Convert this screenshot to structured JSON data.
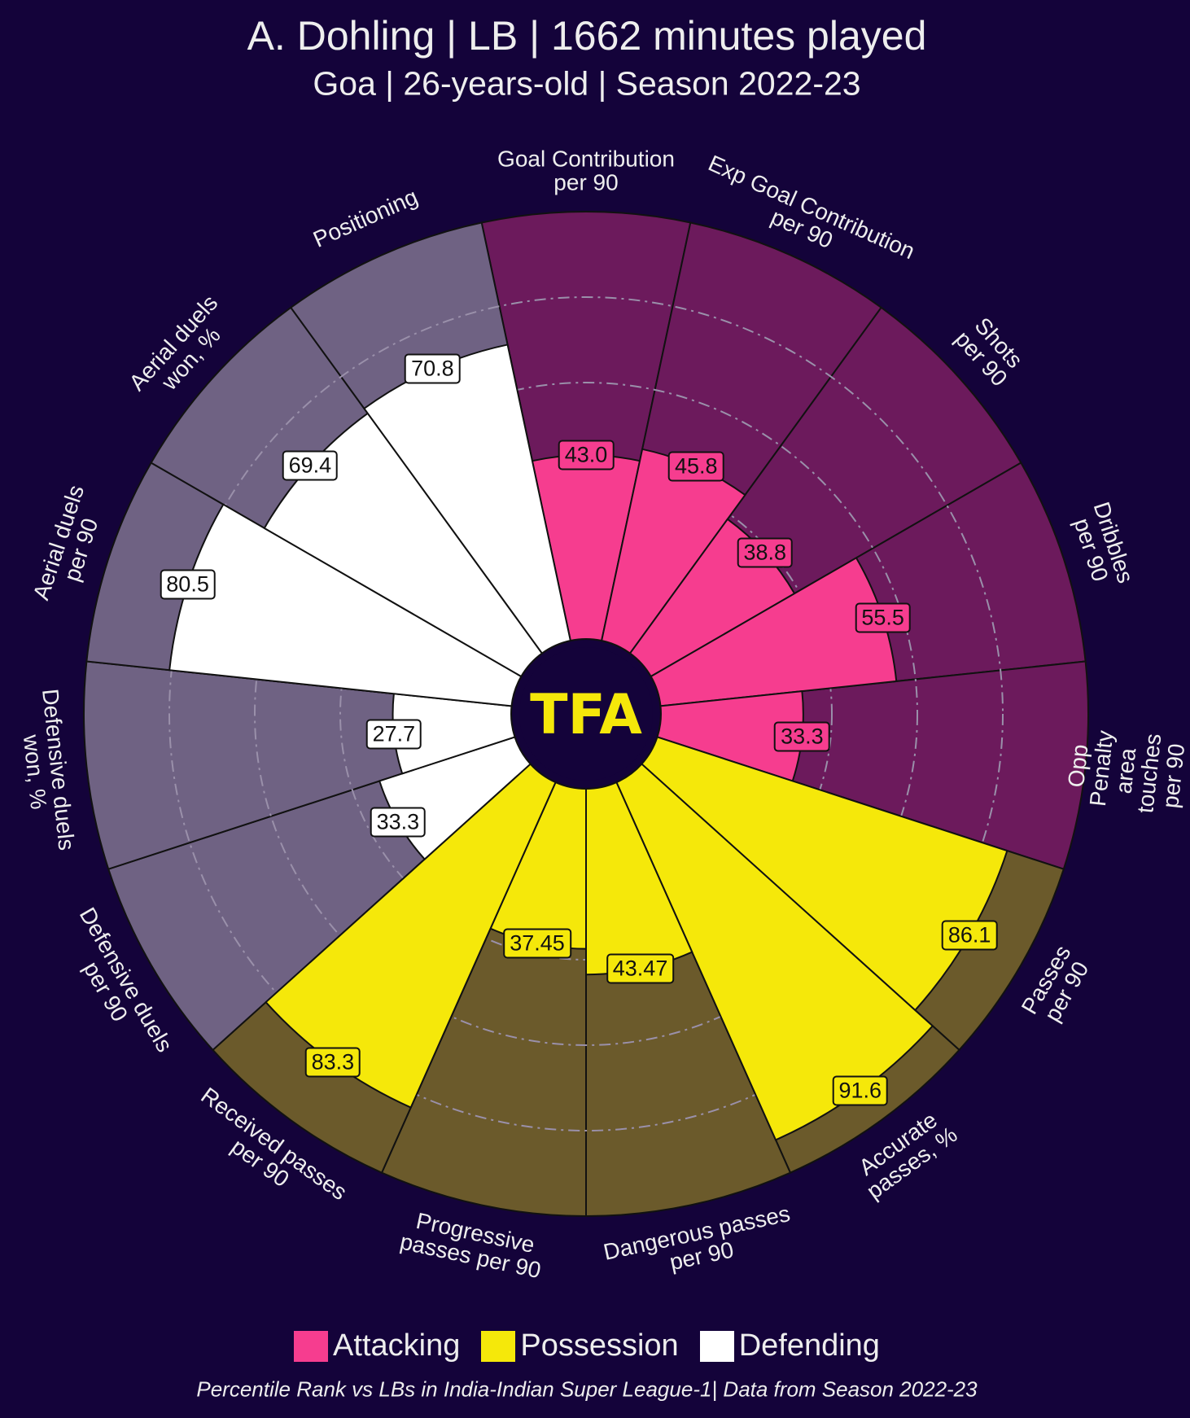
{
  "chart_data": {
    "type": "pizza",
    "title": "A. Dohling | LB | 1662 minutes played",
    "subtitle": "Goa | 26-years-old | Season 2022-23",
    "logo": "TFA",
    "footer": "Percentile Rank vs LBs in India-Indian Super League-1| Data from Season 2022-23",
    "rlim": [
      0,
      100
    ],
    "rticks": [
      20,
      40,
      60,
      80
    ],
    "grid": true,
    "series": [
      {
        "name": "Attacking",
        "color": "#f63d8f",
        "background_color": "#6c1a5c",
        "categories": [
          "Goal Contribution\nper 90",
          "Exp Goal Contribution\nper 90",
          "Shots\nper 90",
          "Dribbles\nper 90",
          "Opp Penalty area\ntouches per 90"
        ],
        "values": [
          43.0,
          45.8,
          38.8,
          55.5,
          33.3
        ],
        "value_labels": [
          "43.0",
          "45.8",
          "38.8",
          "55.5",
          "33.3"
        ]
      },
      {
        "name": "Possession",
        "color": "#f5e80a",
        "background_color": "#6b5a2b",
        "categories": [
          "Passes\nper 90",
          "Accurate\npasses, %",
          "Dangerous passes\nper 90",
          "Progressive\npasses per 90",
          "Received passes\nper 90"
        ],
        "values": [
          86.1,
          91.6,
          43.47,
          37.45,
          83.3
        ],
        "value_labels": [
          "86.1",
          "91.6",
          "43.47",
          "37.45",
          "83.3"
        ]
      },
      {
        "name": "Defending",
        "color": "#ffffff",
        "background_color": "#6f6283",
        "categories": [
          "Defensive duels\nper 90",
          "Defensive duels\nwon, %",
          "Aerial duels\nper 90",
          "Aerial duels\nwon, %",
          "Positioning"
        ],
        "values": [
          33.3,
          27.7,
          80.5,
          69.4,
          70.8
        ],
        "value_labels": [
          "33.3",
          "27.7",
          "80.5",
          "69.4",
          "70.8"
        ]
      }
    ]
  }
}
